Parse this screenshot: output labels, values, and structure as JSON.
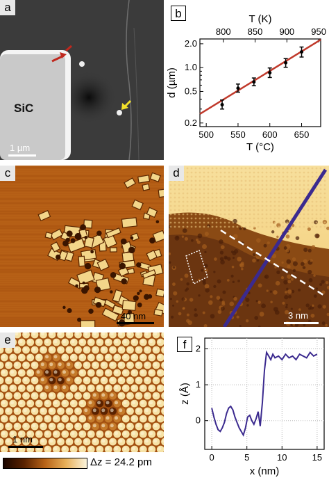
{
  "panels": {
    "a": {
      "label": "a",
      "material": "SiC",
      "scale": "1 µm"
    },
    "b": {
      "label": "b"
    },
    "c": {
      "label": "c",
      "scale": "40 nm"
    },
    "d": {
      "label": "d",
      "scale": "3 nm"
    },
    "e": {
      "label": "e",
      "scale": "1 nm"
    },
    "f": {
      "label": "f"
    }
  },
  "colorbar": {
    "label": "Δz = 24.2 pm"
  },
  "colors": {
    "stm_dark": "#3a1500",
    "stm_mid": "#b86418",
    "stm_light": "#f6e6b8",
    "fit_line": "#c0392b",
    "profile_line": "#3b2a8f",
    "arrow_red": "#c0281e",
    "arrow_yellow": "#f2e12a"
  },
  "chart_data": [
    {
      "type": "scatter",
      "panel": "b",
      "title": "",
      "xlabel": "T (°C)",
      "ylabel": "d (µm)",
      "x2label": "T (K)",
      "xlim": [
        490,
        680
      ],
      "ylim": [
        0.18,
        2.3
      ],
      "yscale": "log",
      "xticks": [
        500,
        550,
        600,
        650
      ],
      "x2ticks": [
        800,
        850,
        900,
        950
      ],
      "yticks": [
        0.2,
        0.5,
        1.0,
        2.0
      ],
      "ytick_labels": [
        "0.2",
        "0.5",
        "1.0",
        "2.0"
      ],
      "points": [
        {
          "x": 525,
          "y": 0.34,
          "yerr_low": 0.3,
          "yerr_high": 0.39
        },
        {
          "x": 550,
          "y": 0.55,
          "yerr_low": 0.49,
          "yerr_high": 0.62
        },
        {
          "x": 575,
          "y": 0.66,
          "yerr_low": 0.59,
          "yerr_high": 0.74
        },
        {
          "x": 600,
          "y": 0.86,
          "yerr_low": 0.75,
          "yerr_high": 0.99
        },
        {
          "x": 625,
          "y": 1.15,
          "yerr_low": 1.01,
          "yerr_high": 1.3
        },
        {
          "x": 650,
          "y": 1.58,
          "yerr_low": 1.36,
          "yerr_high": 1.82
        }
      ],
      "fit": [
        {
          "x": 490,
          "y": 0.26
        },
        {
          "x": 680,
          "y": 2.25
        }
      ]
    },
    {
      "type": "line",
      "panel": "f",
      "title": "",
      "xlabel": "x (nm)",
      "ylabel": "z (Å)",
      "xlim": [
        -1,
        16
      ],
      "ylim": [
        -0.8,
        2.3
      ],
      "xticks": [
        0,
        5,
        10,
        15
      ],
      "yticks": [
        0,
        1,
        2
      ],
      "x": [
        0,
        0.3,
        0.6,
        0.9,
        1.2,
        1.5,
        1.8,
        2.1,
        2.4,
        2.7,
        3.0,
        3.3,
        3.6,
        3.9,
        4.2,
        4.5,
        4.8,
        5.1,
        5.4,
        5.7,
        6.0,
        6.3,
        6.6,
        6.9,
        7.2,
        7.5,
        7.8,
        8.1,
        8.4,
        8.7,
        9.0,
        9.5,
        10,
        10.5,
        11,
        11.5,
        12,
        12.5,
        13,
        13.5,
        14,
        14.5,
        15
      ],
      "y": [
        0.35,
        0.1,
        -0.1,
        -0.25,
        -0.3,
        -0.2,
        -0.05,
        0.2,
        0.35,
        0.4,
        0.3,
        0.1,
        -0.05,
        -0.2,
        -0.3,
        -0.4,
        -0.2,
        0.1,
        0.15,
        0.0,
        -0.1,
        0.05,
        0.25,
        -0.15,
        0.5,
        1.4,
        1.9,
        1.8,
        1.7,
        1.85,
        1.75,
        1.8,
        1.7,
        1.85,
        1.75,
        1.8,
        1.7,
        1.85,
        1.8,
        1.75,
        1.9,
        1.8,
        1.85
      ]
    }
  ]
}
